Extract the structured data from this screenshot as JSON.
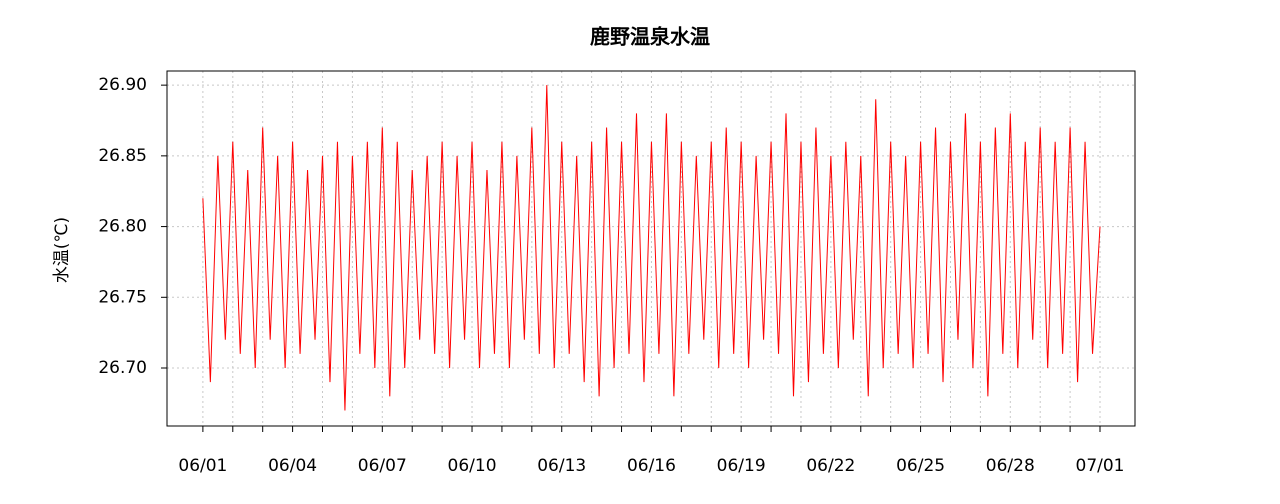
{
  "chart_data": {
    "type": "line",
    "title": "鹿野温泉水温",
    "y_label": "水温(℃)",
    "x": [
      0,
      0.25,
      0.5,
      0.75,
      1,
      1.25,
      1.5,
      1.75,
      2,
      2.25,
      2.5,
      2.75,
      3,
      3.25,
      3.5,
      3.75,
      4,
      4.25,
      4.5,
      4.75,
      5,
      5.25,
      5.5,
      5.75,
      6,
      6.25,
      6.5,
      6.75,
      7,
      7.25,
      7.5,
      7.75,
      8,
      8.25,
      8.5,
      8.75,
      9,
      9.25,
      9.5,
      9.75,
      10,
      10.25,
      10.5,
      10.75,
      11,
      11.25,
      11.5,
      11.75,
      12,
      12.25,
      12.5,
      12.75,
      13,
      13.25,
      13.5,
      13.75,
      14,
      14.25,
      14.5,
      14.75,
      15,
      15.25,
      15.5,
      15.75,
      16,
      16.25,
      16.5,
      16.75,
      17,
      17.25,
      17.5,
      17.75,
      18,
      18.25,
      18.5,
      18.75,
      19,
      19.25,
      19.5,
      19.75,
      20,
      20.25,
      20.5,
      20.75,
      21,
      21.25,
      21.5,
      21.75,
      22,
      22.25,
      22.5,
      22.75,
      23,
      23.25,
      23.5,
      23.75,
      24,
      24.25,
      24.5,
      24.75,
      25,
      25.25,
      25.5,
      25.75,
      26,
      26.25,
      26.5,
      26.75,
      27,
      27.25,
      27.5,
      27.75,
      28,
      28.25,
      28.5,
      28.75,
      29,
      29.25,
      29.5,
      29.75,
      30
    ],
    "series": [
      {
        "color": "#ff0000",
        "values": [
          26.82,
          26.69,
          26.85,
          26.72,
          26.86,
          26.71,
          26.84,
          26.7,
          26.87,
          26.72,
          26.85,
          26.7,
          26.86,
          26.71,
          26.84,
          26.72,
          26.85,
          26.69,
          26.86,
          26.67,
          26.85,
          26.71,
          26.86,
          26.7,
          26.87,
          26.68,
          26.86,
          26.7,
          26.84,
          26.72,
          26.85,
          26.71,
          26.86,
          26.7,
          26.85,
          26.72,
          26.86,
          26.7,
          26.84,
          26.71,
          26.86,
          26.7,
          26.85,
          26.72,
          26.87,
          26.71,
          26.9,
          26.7,
          26.86,
          26.71,
          26.85,
          26.69,
          26.86,
          26.68,
          26.87,
          26.7,
          26.86,
          26.71,
          26.88,
          26.69,
          26.86,
          26.71,
          26.88,
          26.68,
          26.86,
          26.71,
          26.85,
          26.72,
          26.86,
          26.7,
          26.87,
          26.71,
          26.86,
          26.7,
          26.85,
          26.72,
          26.86,
          26.71,
          26.88,
          26.68,
          26.86,
          26.69,
          26.87,
          26.71,
          26.85,
          26.7,
          26.86,
          26.72,
          26.85,
          26.68,
          26.89,
          26.7,
          26.86,
          26.71,
          26.85,
          26.7,
          26.86,
          26.71,
          26.87,
          26.69,
          26.86,
          26.72,
          26.88,
          26.7,
          26.86,
          26.68,
          26.87,
          26.71,
          26.88,
          26.7,
          26.86,
          26.72,
          26.87,
          26.7,
          26.86,
          26.71,
          26.87,
          26.69,
          26.86,
          26.71,
          26.8
        ]
      }
    ],
    "xlim": [
      -1.2,
      31.17
    ],
    "ylim": [
      26.659,
      26.91
    ],
    "yticks": [
      {
        "value": 26.7,
        "label": "26.70"
      },
      {
        "value": 26.75,
        "label": "26.75"
      },
      {
        "value": 26.8,
        "label": "26.80"
      },
      {
        "value": 26.85,
        "label": "26.85"
      },
      {
        "value": 26.9,
        "label": "26.90"
      }
    ],
    "xticks": [
      {
        "value": 0,
        "label": "06/01"
      },
      {
        "value": 1,
        "label": null
      },
      {
        "value": 2,
        "label": null
      },
      {
        "value": 3,
        "label": "06/04"
      },
      {
        "value": 4,
        "label": null
      },
      {
        "value": 5,
        "label": null
      },
      {
        "value": 6,
        "label": "06/07"
      },
      {
        "value": 7,
        "label": null
      },
      {
        "value": 8,
        "label": null
      },
      {
        "value": 9,
        "label": "06/10"
      },
      {
        "value": 10,
        "label": null
      },
      {
        "value": 11,
        "label": null
      },
      {
        "value": 12,
        "label": "06/13"
      },
      {
        "value": 13,
        "label": null
      },
      {
        "value": 14,
        "label": null
      },
      {
        "value": 15,
        "label": "06/16"
      },
      {
        "value": 16,
        "label": null
      },
      {
        "value": 17,
        "label": null
      },
      {
        "value": 18,
        "label": "06/19"
      },
      {
        "value": 19,
        "label": null
      },
      {
        "value": 20,
        "label": null
      },
      {
        "value": 21,
        "label": "06/22"
      },
      {
        "value": 22,
        "label": null
      },
      {
        "value": 23,
        "label": null
      },
      {
        "value": 24,
        "label": "06/25"
      },
      {
        "value": 25,
        "label": null
      },
      {
        "value": 26,
        "label": null
      },
      {
        "value": 27,
        "label": "06/28"
      },
      {
        "value": 28,
        "label": null
      },
      {
        "value": 29,
        "label": null
      },
      {
        "value": 30,
        "label": "07/01"
      }
    ],
    "grid": true
  }
}
